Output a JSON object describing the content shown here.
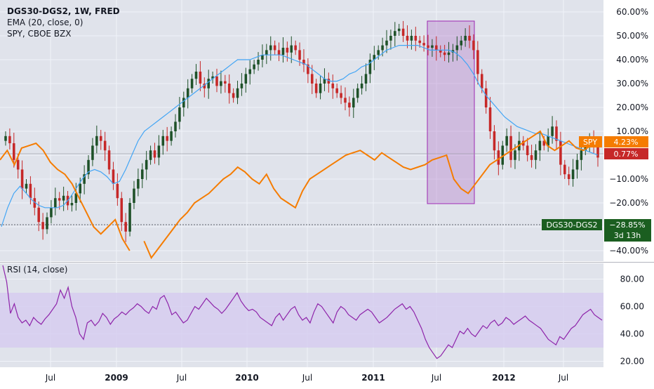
{
  "legend": {
    "title": "DGS30-DGS2, 1W, FRED",
    "ema": "EMA (20, close, 0)",
    "overlay": "SPY, CBOE BZX",
    "rsi": "RSI (14, close)"
  },
  "badges": {
    "spy_label": "SPY",
    "spy_value": "4.23%",
    "last_value": "0.77%",
    "main_label": "DGS30-DGS2",
    "main_value": "−28.85%",
    "countdown": "3d 13h"
  },
  "colors": {
    "background": "#e0e3eb",
    "candle_up": "#1e5128",
    "candle_down": "#c62828",
    "ema": "#42a5f5",
    "spy": "#f57c00",
    "rsi": "#8e24aa",
    "rsi_band": "#d6cdf0",
    "highlight": "#b06fc7"
  },
  "chart_data": [
    {
      "type": "candlestick",
      "title": "DGS30-DGS2, 1W, FRED",
      "x_ticks": [
        "Jul",
        "2009",
        "Jul",
        "2010",
        "Jul",
        "2011",
        "Jul",
        "2012",
        "Jul"
      ],
      "y_ticks": [
        "60.00%",
        "50.00%",
        "40.00%",
        "30.00%",
        "20.00%",
        "10.00%",
        "0.00%",
        "−10.00%",
        "−20.00%",
        "−30.00%",
        "−40.00%"
      ],
      "ylim": [
        -42,
        63
      ],
      "series": [
        {
          "name": "DGS30-DGS2",
          "close": [
            8,
            5,
            -2,
            -6,
            -14,
            -12,
            -18,
            -22,
            -28,
            -31,
            -26,
            -22,
            -18,
            -19,
            -17,
            -21,
            -20,
            -16,
            -12,
            -8,
            -2,
            4,
            8,
            6,
            2,
            -6,
            -12,
            -18,
            -28,
            -32,
            -20,
            -14,
            -10,
            -6,
            -2,
            2,
            -1,
            4,
            8,
            6,
            10,
            14,
            20,
            24,
            28,
            32,
            35,
            30,
            28,
            32,
            33,
            29,
            31,
            30,
            26,
            24,
            28,
            30,
            34,
            36,
            38,
            40,
            42,
            44,
            46,
            44,
            42,
            45,
            43,
            46,
            44,
            40,
            38,
            34,
            30,
            26,
            30,
            32,
            30,
            28,
            26,
            24,
            22,
            20,
            24,
            28,
            30,
            34,
            40,
            42,
            44,
            46,
            48,
            50,
            52,
            53,
            50,
            48,
            50,
            48,
            47,
            46,
            45,
            46,
            44,
            43,
            42,
            43,
            44,
            46,
            48,
            50,
            48,
            44,
            34,
            28,
            20,
            10,
            2,
            -4,
            4,
            8,
            -2,
            2,
            6,
            4,
            0,
            -2,
            2,
            6,
            4,
            8,
            12,
            6,
            -4,
            -8,
            -10,
            -6,
            -2,
            2,
            4,
            6,
            4,
            -1
          ]
        },
        {
          "name": "EMA (20, close, 0)",
          "values": [
            -30,
            -22,
            -16,
            -13,
            -16,
            -19,
            -21,
            -22,
            -22,
            -22,
            -21,
            -18,
            -14,
            -10,
            -7,
            -6,
            -7,
            -9,
            -12,
            -11,
            -6,
            0,
            6,
            10,
            12,
            14,
            16,
            18,
            20,
            22,
            24,
            26,
            28,
            30,
            32,
            34,
            36,
            38,
            40,
            40,
            40,
            41,
            42,
            42,
            42,
            42,
            41,
            40,
            39,
            38,
            36,
            34,
            32,
            31,
            31,
            32,
            34,
            35,
            37,
            38,
            40,
            42,
            44,
            45,
            46,
            46,
            46,
            46,
            45,
            44,
            44,
            44,
            44,
            43,
            41,
            38,
            34,
            29,
            25,
            22,
            19,
            16,
            14,
            12,
            11,
            10,
            9,
            9,
            8,
            7,
            6,
            5,
            4,
            3,
            2,
            1,
            0
          ]
        },
        {
          "name": "SPY",
          "values": [
            -2,
            2,
            -4,
            3,
            4,
            5,
            2,
            -3,
            -6,
            -8,
            -12,
            -18,
            -24,
            -30,
            -33,
            -30,
            -27,
            -35,
            -40,
            -33,
            -36,
            -43,
            -39,
            -35,
            -31,
            -27,
            -24,
            -20,
            -18,
            -16,
            -13,
            -10,
            -8,
            -5,
            -7,
            -10,
            -12,
            -8,
            -14,
            -18,
            -20,
            -22,
            -15,
            -10,
            -8,
            -6,
            -4,
            -2,
            0,
            1,
            2,
            0,
            -2,
            1,
            -1,
            -3,
            -5,
            -6,
            -5,
            -4,
            -2,
            -1,
            0,
            -10,
            -14,
            -16,
            -12,
            -8,
            -4,
            -2,
            0,
            2,
            4,
            6,
            8,
            10,
            4,
            2,
            4,
            6,
            3,
            2,
            4,
            4
          ]
        }
      ],
      "annotations": [
        "highlight box around Jul 2011 sell-off"
      ]
    },
    {
      "type": "line",
      "title": "RSI (14, close)",
      "y_ticks": [
        "80.00",
        "60.00",
        "40.00",
        "20.00"
      ],
      "ylim": [
        15,
        90
      ],
      "band": [
        30,
        70
      ],
      "series": [
        {
          "name": "RSI (14, close)",
          "values": [
            90,
            78,
            55,
            62,
            52,
            48,
            50,
            46,
            52,
            49,
            47,
            51,
            54,
            58,
            62,
            72,
            66,
            74,
            60,
            52,
            40,
            36,
            48,
            50,
            46,
            49,
            55,
            52,
            47,
            51,
            53,
            56,
            54,
            57,
            59,
            62,
            60,
            57,
            55,
            60,
            58,
            66,
            68,
            62,
            54,
            56,
            52,
            48,
            50,
            55,
            60,
            58,
            62,
            66,
            63,
            60,
            58,
            55,
            58,
            62,
            66,
            70,
            64,
            60,
            57,
            58,
            56,
            52,
            50,
            48,
            46,
            52,
            55,
            50,
            54,
            58,
            60,
            54,
            50,
            52,
            48,
            56,
            62,
            60,
            56,
            52,
            48,
            56,
            60,
            58,
            54,
            52,
            50,
            54,
            56,
            58,
            56,
            52,
            48,
            50,
            52,
            55,
            58,
            60,
            62,
            58,
            60,
            56,
            50,
            44,
            36,
            30,
            26,
            22,
            24,
            28,
            32,
            30,
            36,
            42,
            40,
            44,
            40,
            38,
            42,
            46,
            44,
            48,
            50,
            46,
            48,
            52,
            50,
            47,
            49,
            51,
            53,
            50,
            48,
            46,
            44,
            40,
            36,
            34,
            32,
            38,
            36,
            40,
            44,
            46,
            50,
            54,
            56,
            58,
            54,
            52,
            50
          ]
        }
      ]
    }
  ]
}
